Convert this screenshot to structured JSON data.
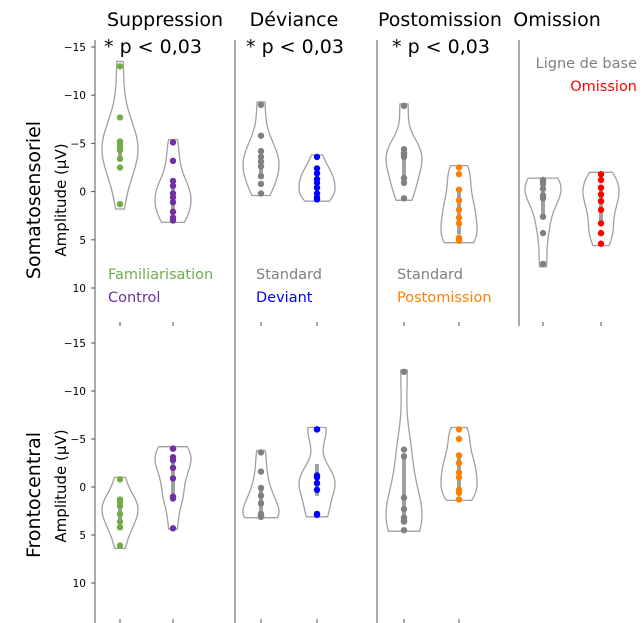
{
  "chart_data": {
    "type": "violin",
    "column_titles": [
      "Suppression",
      "Déviance",
      "Postomission",
      "Omission"
    ],
    "significance": [
      "* p < 0,03",
      "* p < 0,03",
      "* p < 0,03",
      ""
    ],
    "row_labels": [
      "Somatosensoriel",
      "Frontocentral"
    ],
    "ylabel": "Amplitude (µV)",
    "ylim": [
      -15,
      14
    ],
    "yticks": [
      "-15",
      "-10",
      "-5",
      "0",
      "5",
      "10"
    ],
    "panels": [
      {
        "row": 0,
        "col": 0,
        "legend": [
          {
            "name": "Familiarisation",
            "color": "#70ad47"
          },
          {
            "name": "Control",
            "color": "#7030a0"
          }
        ],
        "series": [
          {
            "name": "Familiarisation",
            "color": "#70ad47",
            "values": [
              -13,
              -7.7,
              -5.2,
              -4.9,
              -4.6,
              -4.3,
              -3.4,
              -2.5,
              1.3
            ],
            "violin_range": [
              -13.5,
              1.8
            ]
          },
          {
            "name": "Control",
            "color": "#7030a0",
            "values": [
              -5.1,
              -3.2,
              -1.1,
              -0.6,
              0.2,
              0.6,
              1.1,
              2.1,
              2.7,
              3.0
            ],
            "violin_range": [
              -5.4,
              3.2
            ]
          }
        ]
      },
      {
        "row": 0,
        "col": 1,
        "legend": [
          {
            "name": "Standard",
            "color": "#808080"
          },
          {
            "name": "Deviant",
            "color": "#0000ff"
          }
        ],
        "series": [
          {
            "name": "Standard",
            "color": "#808080",
            "values": [
              -9,
              -5.8,
              -4.2,
              -3.6,
              -3.1,
              -2.6,
              -1.6,
              -0.8,
              0.2
            ],
            "violin_range": [
              -9.3,
              0.4
            ]
          },
          {
            "name": "Deviant",
            "color": "#0000ff",
            "values": [
              -3.6,
              -2.4,
              -1.9,
              -1.3,
              -0.9,
              -0.4,
              0.2,
              0.6,
              0.8
            ],
            "violin_range": [
              -3.8,
              1.0
            ]
          }
        ]
      },
      {
        "row": 0,
        "col": 2,
        "legend": [
          {
            "name": "Standard",
            "color": "#808080"
          },
          {
            "name": "Postomission",
            "color": "#ff8000"
          }
        ],
        "series": [
          {
            "name": "Standard",
            "color": "#808080",
            "values": [
              -8.9,
              -4.4,
              -4.0,
              -3.8,
              -3.6,
              -1.4,
              -0.9,
              0.7
            ],
            "violin_range": [
              -9.1,
              0.9
            ]
          },
          {
            "name": "Postomission",
            "color": "#ff8000",
            "values": [
              -2.5,
              -1.8,
              -0.2,
              0.9,
              1.9,
              2.7,
              3.3,
              4.8,
              5.0,
              5.1
            ],
            "violin_range": [
              -2.7,
              5.3
            ]
          }
        ]
      },
      {
        "row": 0,
        "col": 3,
        "legend": [
          {
            "name": "Ligne de base",
            "color": "#808080"
          },
          {
            "name": "Omission",
            "color": "#ff0000"
          }
        ],
        "series": [
          {
            "name": "Ligne de base",
            "color": "#808080",
            "values": [
              -1.2,
              -1.0,
              -0.8,
              -0.3,
              0.4,
              0.7,
              2.6,
              4.3,
              7.5
            ],
            "violin_range": [
              -1.4,
              7.8
            ]
          },
          {
            "name": "Omission",
            "color": "#ff0000",
            "values": [
              -1.8,
              -1.2,
              -0.4,
              0.3,
              1.0,
              1.9,
              3.3,
              4.3,
              5.4
            ],
            "violin_range": [
              -2.0,
              5.6
            ]
          }
        ]
      },
      {
        "row": 1,
        "col": 0,
        "legend": [],
        "series": [
          {
            "name": "Familiarisation",
            "color": "#70ad47",
            "values": [
              -0.8,
              1.3,
              1.6,
              2.0,
              2.8,
              3.6,
              4.2,
              6.1
            ],
            "violin_range": [
              -1.0,
              6.4
            ]
          },
          {
            "name": "Control",
            "color": "#7030a0",
            "values": [
              -4.0,
              -4.0,
              -3.1,
              -2.8,
              -2.0,
              -0.9,
              1.0,
              1.2,
              4.3
            ],
            "violin_range": [
              -4.2,
              4.4
            ]
          }
        ]
      },
      {
        "row": 1,
        "col": 1,
        "legend": [],
        "series": [
          {
            "name": "Standard",
            "color": "#808080",
            "values": [
              -3.6,
              -1.6,
              0.1,
              0.9,
              1.7,
              2.8,
              3.0,
              3.0,
              3.1
            ],
            "violin_range": [
              -3.8,
              3.2
            ]
          },
          {
            "name": "Deviant",
            "color": "#0000ff",
            "values": [
              -6.0,
              -6.0,
              -1.2,
              -1.0,
              -0.4,
              0.3,
              2.8,
              2.9
            ],
            "violin_range": [
              -6.2,
              3.1
            ]
          }
        ]
      },
      {
        "row": 1,
        "col": 2,
        "legend": [],
        "series": [
          {
            "name": "Standard",
            "color": "#808080",
            "values": [
              -12,
              -3.9,
              -3.2,
              1.1,
              2.3,
              3.2,
              3.5,
              3.6,
              4.5
            ],
            "violin_range": [
              -12.2,
              4.6
            ]
          },
          {
            "name": "Postomission",
            "color": "#ff8000",
            "values": [
              -6.0,
              -5.0,
              -3.3,
              -2.5,
              -1.5,
              -1.0,
              0.3,
              0.6,
              1.3
            ],
            "violin_range": [
              -6.2,
              1.4
            ]
          }
        ]
      }
    ]
  }
}
